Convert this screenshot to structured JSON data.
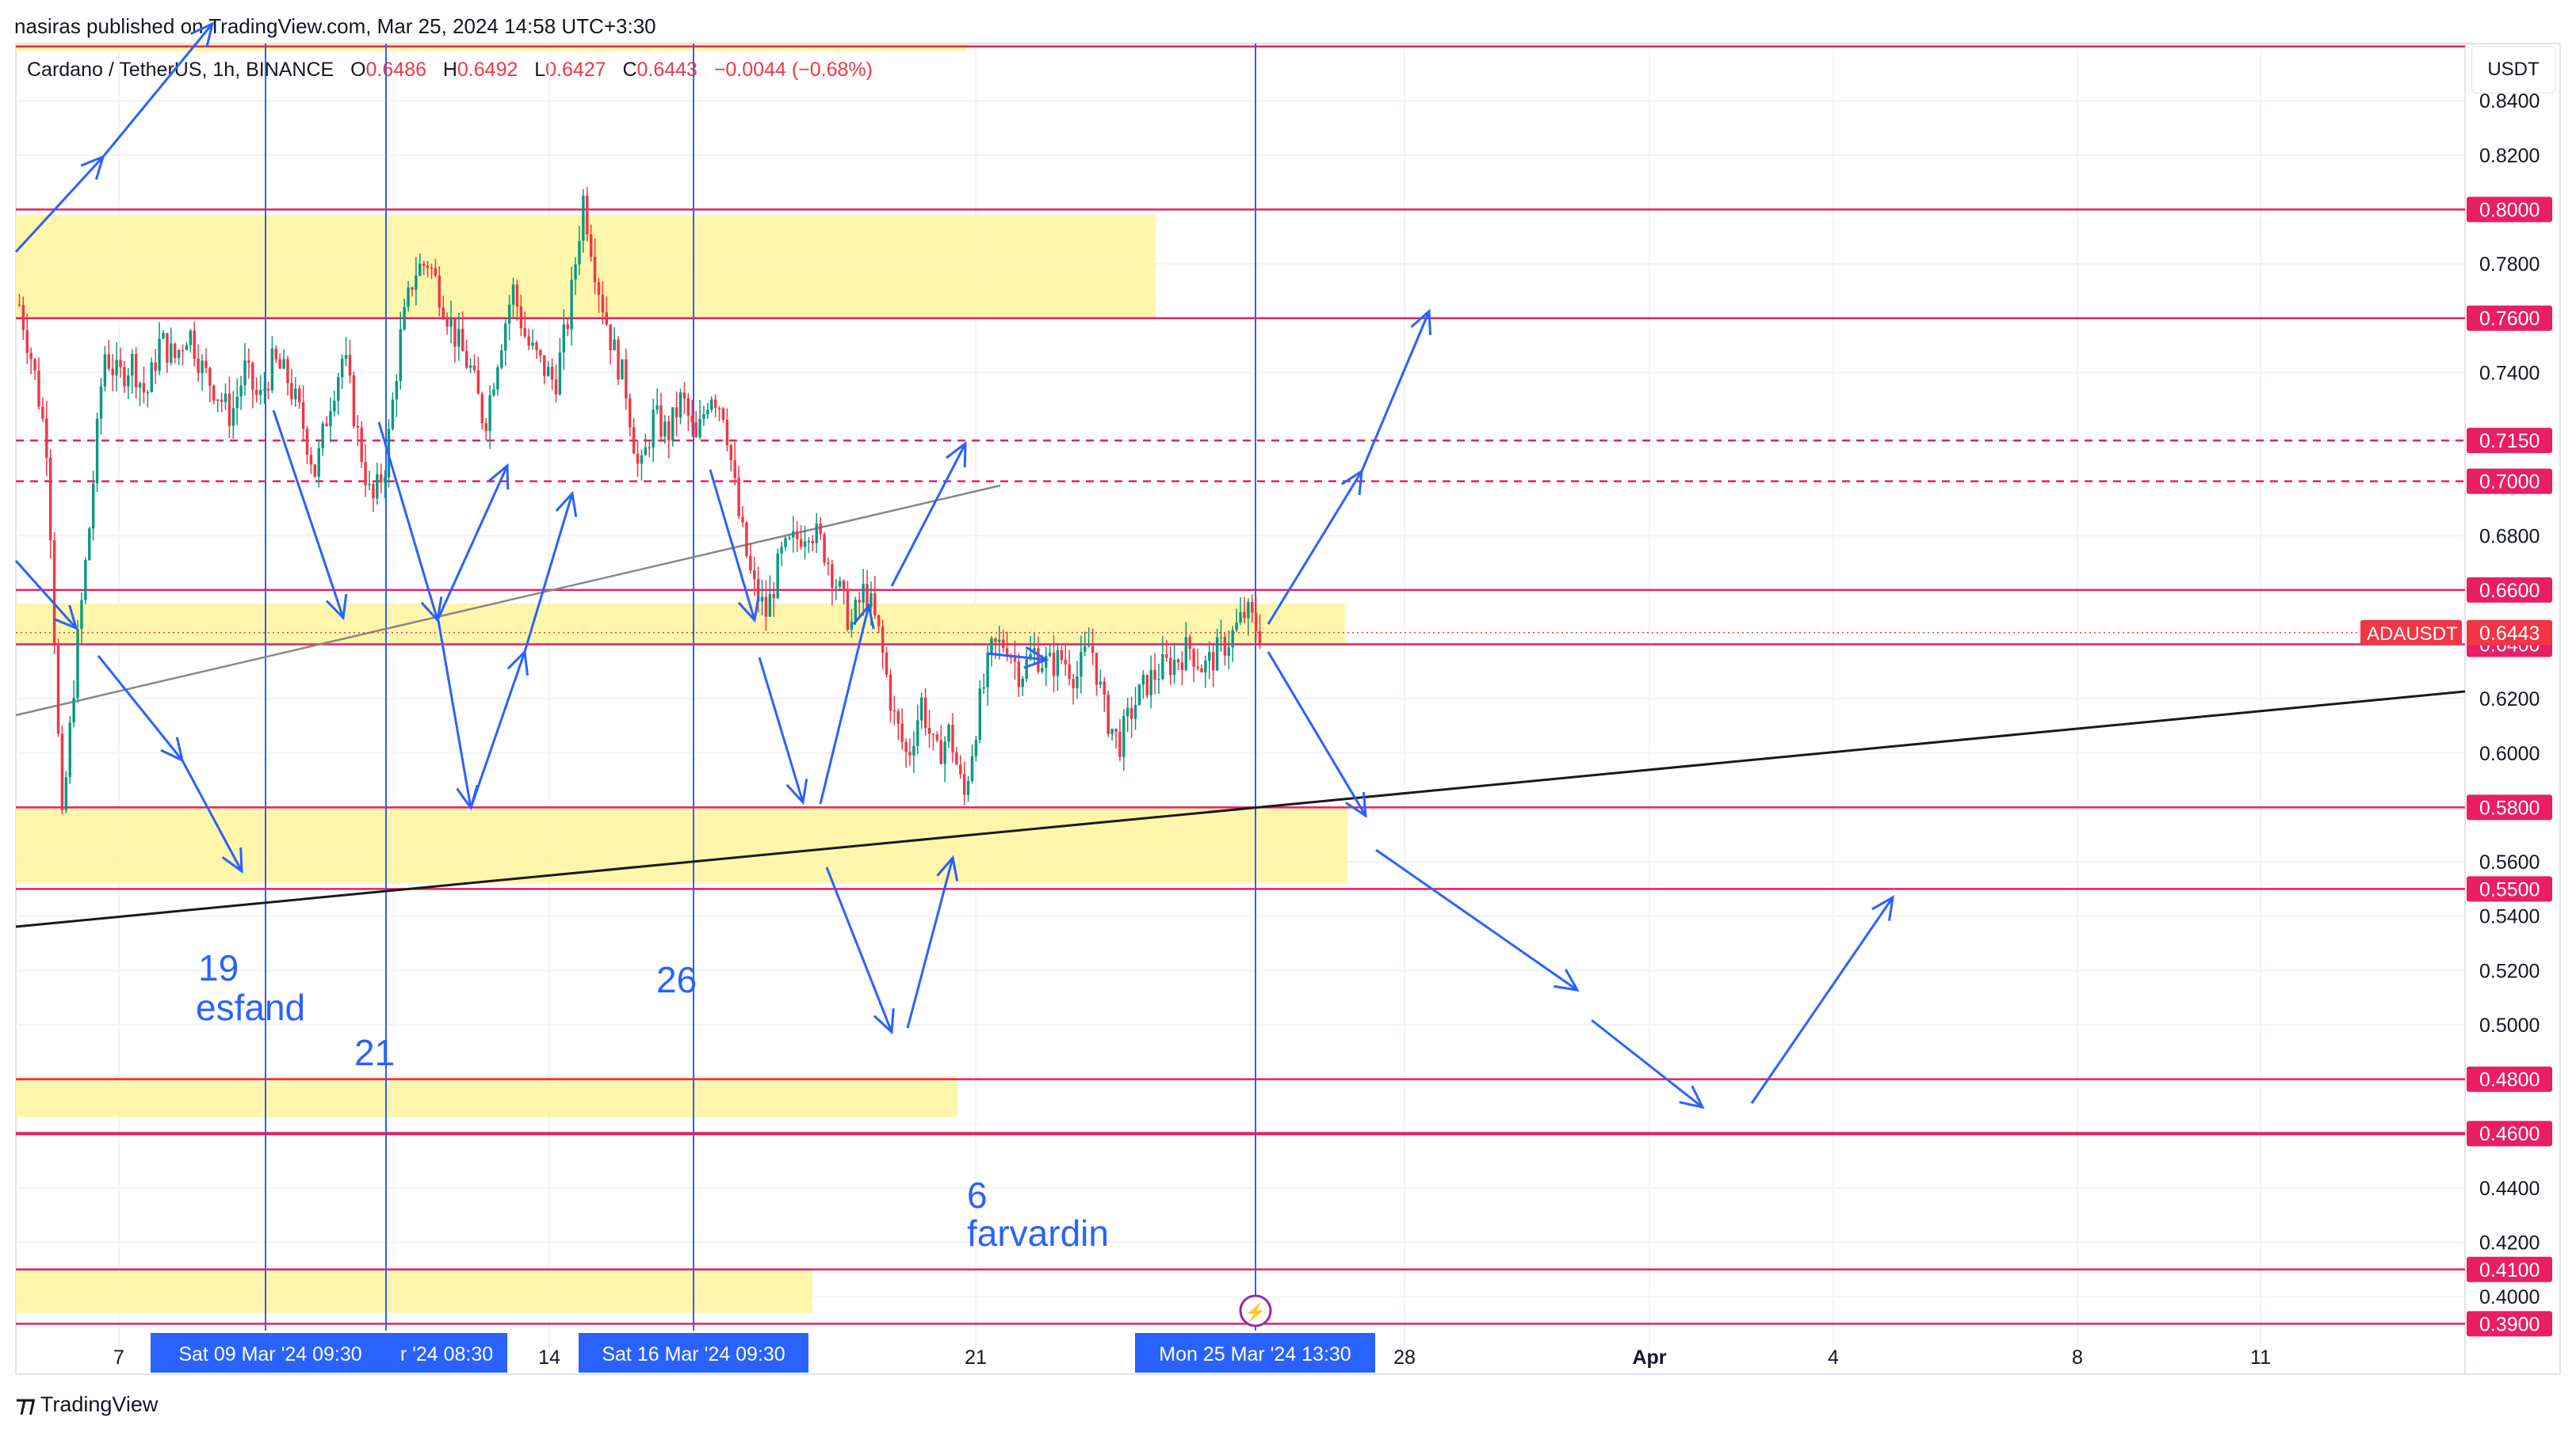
{
  "header": {
    "published": "nasiras published on TradingView.com, Mar 25, 2024 14:58 UTC+3:30"
  },
  "symbol_bar": {
    "name": "Cardano / TetherUS, 1h, BINANCE",
    "o_label": "O",
    "o_value": "0.6486",
    "h_label": "H",
    "h_value": "0.6492",
    "l_label": "L",
    "l_value": "0.6427",
    "c_label": "C",
    "c_value": "0.6443",
    "change": "−0.0044 (−0.68%)"
  },
  "price_unit": "USDT",
  "footer": {
    "brand": "TradingView"
  },
  "colors": {
    "up": "#089981",
    "down": "#f23645",
    "level": "#e91e63",
    "zone": "#fff59d",
    "annotation": "#2962ff",
    "timeline": "#2962ff"
  },
  "chart_data": {
    "type": "candlestick",
    "symbol": "ADAUSDT",
    "interval": "1h",
    "y_axis": {
      "range": [
        0.3875,
        0.859
      ],
      "ticks": [
        "0.4000",
        "0.4200",
        "0.4400",
        "0.5000",
        "0.5200",
        "0.5400",
        "0.5600",
        "0.6000",
        "0.6200",
        "0.6800",
        "0.7400",
        "0.7800",
        "0.8200",
        "0.8400"
      ]
    },
    "x_axis": {
      "ticks": [
        "7",
        "14",
        "21",
        "28",
        "Apr",
        "4",
        "8",
        "11"
      ],
      "highlighted": [
        "Sat 09 Mar '24   09:30",
        "r '24   08:30",
        "Sat 16 Mar '24   09:30",
        "Mon 25 Mar '24   13:30"
      ]
    },
    "last_price": {
      "label": "ADAUSDT",
      "value": 0.6443,
      "text": "0.6443"
    },
    "horizontal_levels": [
      {
        "value": 0.86,
        "text": ""
      },
      {
        "value": 0.8,
        "text": "0.8000"
      },
      {
        "value": 0.76,
        "text": "0.7600"
      },
      {
        "value": 0.715,
        "text": "0.7150",
        "dashed": true
      },
      {
        "value": 0.7,
        "text": "0.7000",
        "dashed": true
      },
      {
        "value": 0.66,
        "text": "0.6600"
      },
      {
        "value": 0.64,
        "text": "0.6400"
      },
      {
        "value": 0.58,
        "text": "0.5800"
      },
      {
        "value": 0.55,
        "text": "0.5500"
      },
      {
        "value": 0.48,
        "text": "0.4800"
      },
      {
        "value": 0.46,
        "text": "0.4600"
      },
      {
        "value": 0.41,
        "text": "0.4100"
      },
      {
        "value": 0.39,
        "text": "0.3900"
      }
    ],
    "zones": [
      {
        "from": 0.76,
        "to": 0.798
      },
      {
        "from": 0.64,
        "to": 0.655
      },
      {
        "from": 0.552,
        "to": 0.58
      },
      {
        "from": 0.466,
        "to": 0.481
      },
      {
        "from": 0.394,
        "to": 0.41
      }
    ],
    "annotations": [
      {
        "text": "19"
      },
      {
        "text": "esfand"
      },
      {
        "text": "21"
      },
      {
        "text": "26"
      },
      {
        "text": "6"
      },
      {
        "text": "farvardin"
      }
    ],
    "price_path": [
      [
        0.765,
        0.742,
        0.712,
        0.571,
        0.634,
        0.685,
        0.748,
        0.738,
        0.744,
        0.731,
        0.752,
        0.745,
        0.756,
        0.741,
        0.733,
        0.724,
        0.741,
        0.729,
        0.744,
        0.738,
        0.723,
        0.703,
        0.729,
        0.747,
        0.717,
        0.691,
        0.707,
        0.752,
        0.777,
        0.781,
        0.767,
        0.752,
        0.741,
        0.721,
        0.748,
        0.771,
        0.751,
        0.743,
        0.736,
        0.762,
        0.804,
        0.774,
        0.751,
        0.735,
        0.701,
        0.724,
        0.717,
        0.731,
        0.714,
        0.734,
        0.726,
        0.688,
        0.662,
        0.651,
        0.672,
        0.678,
        0.684,
        0.676,
        0.662,
        0.647,
        0.661,
        0.643,
        0.614,
        0.598,
        0.619,
        0.598,
        0.608,
        0.583,
        0.615,
        0.638,
        0.641,
        0.629,
        0.637,
        0.632,
        0.635,
        0.628,
        0.641,
        0.615,
        0.603,
        0.617,
        0.626,
        0.631,
        0.634,
        0.639,
        0.631,
        0.637,
        0.643,
        0.652,
        0.6443
      ]
    ]
  }
}
